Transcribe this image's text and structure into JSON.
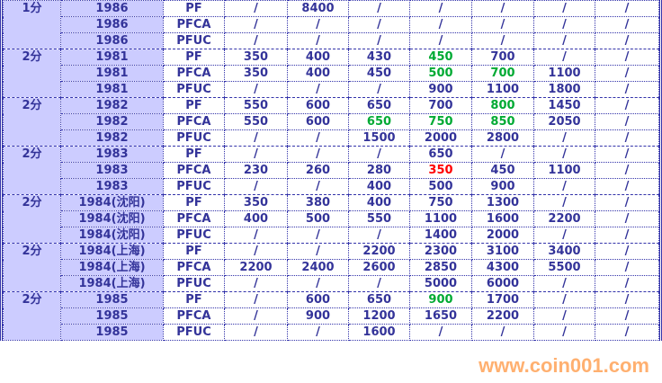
{
  "colors": {
    "text": "#333399",
    "header_bg": "#ccccff",
    "green": "#00aa33",
    "red": "#ff0000"
  },
  "watermark": "www.coin001.com",
  "groups": [
    {
      "denomination": "1分",
      "rows": [
        {
          "year": "1986",
          "type": "PF",
          "values": [
            "/",
            "8400",
            "/",
            "/",
            "/",
            "/",
            "/"
          ]
        },
        {
          "year": "1986",
          "type": "PFCA",
          "values": [
            "/",
            "/",
            "/",
            "/",
            "/",
            "/",
            "/"
          ]
        },
        {
          "year": "1986",
          "type": "PFUC",
          "values": [
            "/",
            "/",
            "/",
            "/",
            "/",
            "/",
            "/"
          ]
        }
      ]
    },
    {
      "denomination": "2分",
      "rows": [
        {
          "year": "1981",
          "type": "PF",
          "values": [
            "350",
            "400",
            "430",
            "450",
            "700",
            "/",
            "/"
          ],
          "highlights": {
            "3": "green"
          }
        },
        {
          "year": "1981",
          "type": "PFCA",
          "values": [
            "350",
            "400",
            "450",
            "500",
            "700",
            "1100",
            "/"
          ],
          "highlights": {
            "3": "green",
            "4": "green"
          }
        },
        {
          "year": "1981",
          "type": "PFUC",
          "values": [
            "/",
            "/",
            "/",
            "900",
            "1100",
            "1800",
            "/"
          ]
        }
      ]
    },
    {
      "denomination": "2分",
      "rows": [
        {
          "year": "1982",
          "type": "PF",
          "values": [
            "550",
            "600",
            "650",
            "700",
            "800",
            "1450",
            "/"
          ],
          "highlights": {
            "4": "green"
          }
        },
        {
          "year": "1982",
          "type": "PFCA",
          "values": [
            "550",
            "600",
            "650",
            "750",
            "850",
            "2050",
            "/"
          ],
          "highlights": {
            "2": "green",
            "3": "green",
            "4": "green"
          }
        },
        {
          "year": "1982",
          "type": "PFUC",
          "values": [
            "/",
            "/",
            "1500",
            "2000",
            "2800",
            "/",
            "/"
          ]
        }
      ]
    },
    {
      "denomination": "2分",
      "rows": [
        {
          "year": "1983",
          "type": "PF",
          "values": [
            "/",
            "/",
            "/",
            "650",
            "/",
            "/",
            "/"
          ]
        },
        {
          "year": "1983",
          "type": "PFCA",
          "values": [
            "230",
            "260",
            "280",
            "350",
            "450",
            "1100",
            "/"
          ],
          "highlights": {
            "3": "red"
          }
        },
        {
          "year": "1983",
          "type": "PFUC",
          "values": [
            "/",
            "/",
            "400",
            "500",
            "900",
            "/",
            "/"
          ]
        }
      ]
    },
    {
      "denomination": "2分",
      "rows": [
        {
          "year": "1984(沈阳)",
          "type": "PF",
          "values": [
            "350",
            "380",
            "400",
            "750",
            "1300",
            "/",
            "/"
          ]
        },
        {
          "year": "1984(沈阳)",
          "type": "PFCA",
          "values": [
            "400",
            "500",
            "550",
            "1100",
            "1600",
            "2200",
            "/"
          ]
        },
        {
          "year": "1984(沈阳)",
          "type": "PFUC",
          "values": [
            "/",
            "/",
            "/",
            "1400",
            "2000",
            "/",
            "/"
          ]
        }
      ]
    },
    {
      "denomination": "2分",
      "rows": [
        {
          "year": "1984(上海)",
          "type": "PF",
          "values": [
            "/",
            "/",
            "2200",
            "2300",
            "3100",
            "3400",
            "/"
          ]
        },
        {
          "year": "1984(上海)",
          "type": "PFCA",
          "values": [
            "2200",
            "2400",
            "2600",
            "2850",
            "4300",
            "5500",
            "/"
          ]
        },
        {
          "year": "1984(上海)",
          "type": "PFUC",
          "values": [
            "/",
            "/",
            "/",
            "5000",
            "6000",
            "/",
            "/"
          ]
        }
      ]
    },
    {
      "denomination": "2分",
      "rows": [
        {
          "year": "1985",
          "type": "PF",
          "values": [
            "/",
            "600",
            "650",
            "900",
            "1700",
            "/",
            "/"
          ],
          "highlights": {
            "3": "green"
          }
        },
        {
          "year": "1985",
          "type": "PFCA",
          "values": [
            "/",
            "900",
            "1200",
            "1650",
            "2200",
            "/",
            "/"
          ]
        },
        {
          "year": "1985",
          "type": "PFUC",
          "values": [
            "/",
            "/",
            "1600",
            "/",
            "/",
            "/",
            "/"
          ]
        }
      ]
    }
  ]
}
